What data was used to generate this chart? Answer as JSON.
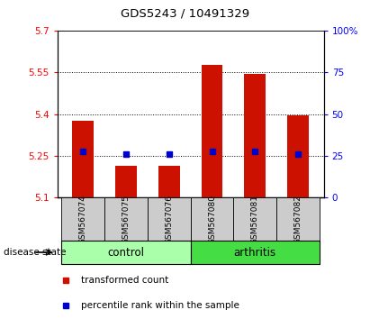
{
  "title": "GDS5243 / 10491329",
  "samples": [
    "GSM567074",
    "GSM567075",
    "GSM567076",
    "GSM567080",
    "GSM567081",
    "GSM567082"
  ],
  "groups": [
    "control",
    "control",
    "control",
    "arthritis",
    "arthritis",
    "arthritis"
  ],
  "bar_bottom": 5.1,
  "red_values": [
    5.375,
    5.215,
    5.215,
    5.575,
    5.545,
    5.395
  ],
  "blue_values": [
    5.265,
    5.255,
    5.255,
    5.265,
    5.265,
    5.258
  ],
  "ylim_left": [
    5.1,
    5.7
  ],
  "ylim_right": [
    0,
    100
  ],
  "yticks_left": [
    5.1,
    5.25,
    5.4,
    5.55,
    5.7
  ],
  "ytick_labels_left": [
    "5.1",
    "5.25",
    "5.4",
    "5.55",
    "5.7"
  ],
  "yticks_right": [
    0,
    25,
    50,
    75,
    100
  ],
  "ytick_labels_right": [
    "0",
    "25",
    "50",
    "75",
    "100%"
  ],
  "grid_values": [
    5.25,
    5.4,
    5.55
  ],
  "bar_color": "#CC1100",
  "dot_color": "#0000CC",
  "control_color": "#AAFFAA",
  "arthritis_color": "#44DD44",
  "sample_bg_color": "#CCCCCC",
  "control_label": "control",
  "arthritis_label": "arthritis",
  "disease_state_label": "disease state",
  "legend_red": "transformed count",
  "legend_blue": "percentile rank within the sample",
  "bar_width": 0.5
}
